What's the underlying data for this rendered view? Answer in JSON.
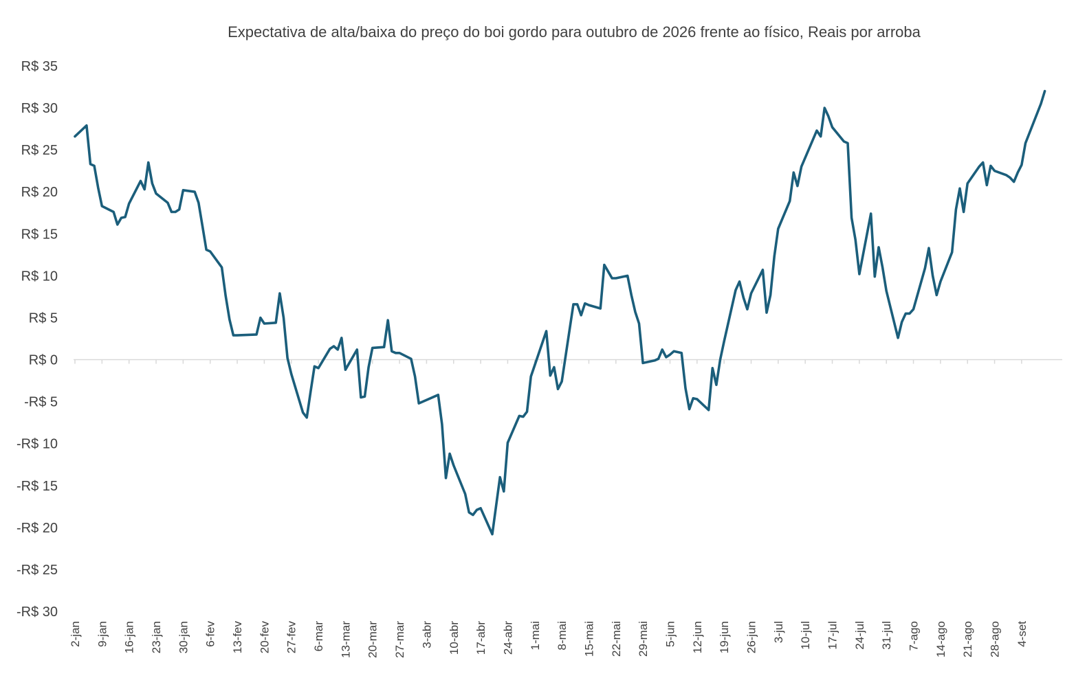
{
  "chart_data": {
    "type": "line",
    "title": "Expectativa de alta/baixa do preço do boi gordo para outubro de 2026 frente ao físico, Reais por arroba",
    "xlabel": "",
    "ylabel": "",
    "ylim": [
      -30,
      35
    ],
    "y_ticks": [
      {
        "value": 35,
        "label": "R$ 35"
      },
      {
        "value": 30,
        "label": "R$ 30"
      },
      {
        "value": 25,
        "label": "R$ 25"
      },
      {
        "value": 20,
        "label": "R$ 20"
      },
      {
        "value": 15,
        "label": "R$ 15"
      },
      {
        "value": 10,
        "label": "R$ 10"
      },
      {
        "value": 5,
        "label": "R$ 5"
      },
      {
        "value": 0,
        "label": "R$ 0"
      },
      {
        "value": -5,
        "label": "-R$ 5"
      },
      {
        "value": -10,
        "label": "-R$ 10"
      },
      {
        "value": -15,
        "label": "-R$ 15"
      },
      {
        "value": -20,
        "label": "-R$ 20"
      },
      {
        "value": -25,
        "label": "-R$ 25"
      },
      {
        "value": -30,
        "label": "-R$ 30"
      }
    ],
    "x_ticks": [
      "2-jan",
      "9-jan",
      "16-jan",
      "23-jan",
      "30-jan",
      "6-fev",
      "13-fev",
      "20-fev",
      "27-fev",
      "6-mar",
      "13-mar",
      "20-mar",
      "27-mar",
      "3-abr",
      "10-abr",
      "17-abr",
      "24-abr",
      "1-mai",
      "8-mai",
      "15-mai",
      "22-mai",
      "29-mai",
      "5-jun",
      "12-jun",
      "19-jun",
      "26-jun",
      "3-jul",
      "10-jul",
      "17-jul",
      "24-jul",
      "31-jul",
      "7-ago",
      "14-ago",
      "21-ago",
      "28-ago",
      "4-set"
    ],
    "x_axis_start": "2-jan",
    "x_tick_step_weeks": 1,
    "grid": false,
    "legend": "none",
    "series": [
      {
        "color": "#1b5e7b",
        "points": [
          [
            "2-jan",
            26.6
          ],
          [
            "5-jan",
            27.9
          ],
          [
            "6-jan",
            23.3
          ],
          [
            "7-jan",
            23.1
          ],
          [
            "8-jan",
            20.5
          ],
          [
            "9-jan",
            18.3
          ],
          [
            "12-jan",
            17.6
          ],
          [
            "13-jan",
            16.1
          ],
          [
            "14-jan",
            16.9
          ],
          [
            "15-jan",
            17.0
          ],
          [
            "16-jan",
            18.6
          ],
          [
            "19-jan",
            21.3
          ],
          [
            "20-jan",
            20.3
          ],
          [
            "21-jan",
            23.5
          ],
          [
            "22-jan",
            21.0
          ],
          [
            "23-jan",
            19.8
          ],
          [
            "26-jan",
            18.7
          ],
          [
            "27-jan",
            17.6
          ],
          [
            "28-jan",
            17.6
          ],
          [
            "29-jan",
            17.9
          ],
          [
            "30-jan",
            20.2
          ],
          [
            "2-fev",
            20.0
          ],
          [
            "3-fev",
            18.7
          ],
          [
            "4-fev",
            15.9
          ],
          [
            "5-fev",
            13.1
          ],
          [
            "6-fev",
            12.9
          ],
          [
            "9-fev",
            11.0
          ],
          [
            "10-fev",
            7.6
          ],
          [
            "11-fev",
            4.8
          ],
          [
            "12-fev",
            2.9
          ],
          [
            "13-fev",
            2.9
          ],
          [
            "18-fev",
            3.0
          ],
          [
            "19-fev",
            5.0
          ],
          [
            "20-fev",
            4.3
          ],
          [
            "23-fev",
            4.4
          ],
          [
            "24-fev",
            7.9
          ],
          [
            "25-fev",
            5.0
          ],
          [
            "26-fev",
            0.2
          ],
          [
            "27-fev",
            -1.7
          ],
          [
            "2-mar",
            -6.3
          ],
          [
            "3-mar",
            -6.9
          ],
          [
            "4-mar",
            -3.8
          ],
          [
            "5-mar",
            -0.8
          ],
          [
            "6-mar",
            -1.0
          ],
          [
            "9-mar",
            1.3
          ],
          [
            "10-mar",
            1.6
          ],
          [
            "11-mar",
            1.2
          ],
          [
            "12-mar",
            2.6
          ],
          [
            "13-mar",
            -1.2
          ],
          [
            "16-mar",
            1.2
          ],
          [
            "17-mar",
            -4.5
          ],
          [
            "18-mar",
            -4.4
          ],
          [
            "19-mar",
            -0.9
          ],
          [
            "20-mar",
            1.4
          ],
          [
            "23-mar",
            1.5
          ],
          [
            "24-mar",
            4.7
          ],
          [
            "25-mar",
            1.0
          ],
          [
            "26-mar",
            0.8
          ],
          [
            "27-mar",
            0.8
          ],
          [
            "30-mar",
            0.1
          ],
          [
            "31-mar",
            -2.0
          ],
          [
            "1-abr",
            -5.2
          ],
          [
            "6-abr",
            -4.2
          ],
          [
            "7-abr",
            -7.7
          ],
          [
            "8-abr",
            -14.1
          ],
          [
            "9-abr",
            -11.2
          ],
          [
            "10-abr",
            -12.6
          ],
          [
            "13-abr",
            -16.0
          ],
          [
            "14-abr",
            -18.2
          ],
          [
            "15-abr",
            -18.5
          ],
          [
            "16-abr",
            -17.9
          ],
          [
            "17-abr",
            -17.7
          ],
          [
            "20-abr",
            -20.8
          ],
          [
            "22-abr",
            -14.0
          ],
          [
            "23-abr",
            -15.7
          ],
          [
            "24-abr",
            -9.9
          ],
          [
            "27-abr",
            -6.7
          ],
          [
            "28-abr",
            -6.8
          ],
          [
            "29-abr",
            -6.2
          ],
          [
            "30-abr",
            -2.0
          ],
          [
            "4-mai",
            3.4
          ],
          [
            "5-mai",
            -1.9
          ],
          [
            "6-mai",
            -0.9
          ],
          [
            "7-mai",
            -3.5
          ],
          [
            "8-mai",
            -2.6
          ],
          [
            "11-mai",
            6.6
          ],
          [
            "12-mai",
            6.6
          ],
          [
            "13-mai",
            5.3
          ],
          [
            "14-mai",
            6.7
          ],
          [
            "15-mai",
            6.5
          ],
          [
            "18-mai",
            6.1
          ],
          [
            "19-mai",
            11.3
          ],
          [
            "20-mai",
            10.5
          ],
          [
            "21-mai",
            9.7
          ],
          [
            "22-mai",
            9.7
          ],
          [
            "25-mai",
            10.0
          ],
          [
            "26-mai",
            7.7
          ],
          [
            "27-mai",
            5.7
          ],
          [
            "28-mai",
            4.3
          ],
          [
            "29-mai",
            -0.4
          ],
          [
            "1-jun",
            -0.1
          ],
          [
            "2-jun",
            0.1
          ],
          [
            "3-jun",
            1.2
          ],
          [
            "4-jun",
            0.3
          ],
          [
            "5-jun",
            0.6
          ],
          [
            "6-jun",
            1.0
          ],
          [
            "8-jun",
            0.8
          ],
          [
            "9-jun",
            -3.4
          ],
          [
            "10-jun",
            -5.9
          ],
          [
            "11-jun",
            -4.6
          ],
          [
            "12-jun",
            -4.7
          ],
          [
            "15-jun",
            -6.0
          ],
          [
            "16-jun",
            -1.0
          ],
          [
            "17-jun",
            -3.0
          ],
          [
            "18-jun",
            0.0
          ],
          [
            "19-jun",
            2.2
          ],
          [
            "22-jun",
            8.3
          ],
          [
            "23-jun",
            9.3
          ],
          [
            "24-jun",
            7.4
          ],
          [
            "25-jun",
            6.0
          ],
          [
            "26-jun",
            7.9
          ],
          [
            "29-jun",
            10.7
          ],
          [
            "30-jun",
            5.6
          ],
          [
            "1-jul",
            7.7
          ],
          [
            "2-jul",
            12.3
          ],
          [
            "3-jul",
            15.6
          ],
          [
            "6-jul",
            18.9
          ],
          [
            "7-jul",
            22.3
          ],
          [
            "8-jul",
            20.7
          ],
          [
            "9-jul",
            23.0
          ],
          [
            "13-jul",
            27.3
          ],
          [
            "14-jul",
            26.6
          ],
          [
            "15-jul",
            30.0
          ],
          [
            "16-jul",
            29.0
          ],
          [
            "17-jul",
            27.7
          ],
          [
            "20-jul",
            26.0
          ],
          [
            "21-jul",
            25.8
          ],
          [
            "22-jul",
            16.9
          ],
          [
            "23-jul",
            14.3
          ],
          [
            "24-jul",
            10.2
          ],
          [
            "27-jul",
            17.4
          ],
          [
            "28-jul",
            9.9
          ],
          [
            "29-jul",
            13.4
          ],
          [
            "30-jul",
            11.0
          ],
          [
            "31-jul",
            8.2
          ],
          [
            "3-ago",
            2.6
          ],
          [
            "4-ago",
            4.5
          ],
          [
            "5-ago",
            5.5
          ],
          [
            "6-ago",
            5.5
          ],
          [
            "7-ago",
            6.0
          ],
          [
            "10-ago",
            10.9
          ],
          [
            "11-ago",
            13.3
          ],
          [
            "12-ago",
            10.0
          ],
          [
            "13-ago",
            7.7
          ],
          [
            "14-ago",
            9.3
          ],
          [
            "17-ago",
            12.8
          ],
          [
            "18-ago",
            17.9
          ],
          [
            "19-ago",
            20.4
          ],
          [
            "20-ago",
            17.6
          ],
          [
            "21-ago",
            21.0
          ],
          [
            "24-ago",
            23.0
          ],
          [
            "25-ago",
            23.5
          ],
          [
            "26-ago",
            20.8
          ],
          [
            "27-ago",
            23.1
          ],
          [
            "28-ago",
            22.5
          ],
          [
            "31-ago",
            22.0
          ],
          [
            "1-set",
            21.7
          ],
          [
            "2-set",
            21.2
          ],
          [
            "3-set",
            22.3
          ],
          [
            "4-set",
            23.2
          ],
          [
            "5-set",
            25.8
          ],
          [
            "9-set",
            30.5
          ],
          [
            "10-set",
            32.0
          ]
        ]
      }
    ]
  }
}
